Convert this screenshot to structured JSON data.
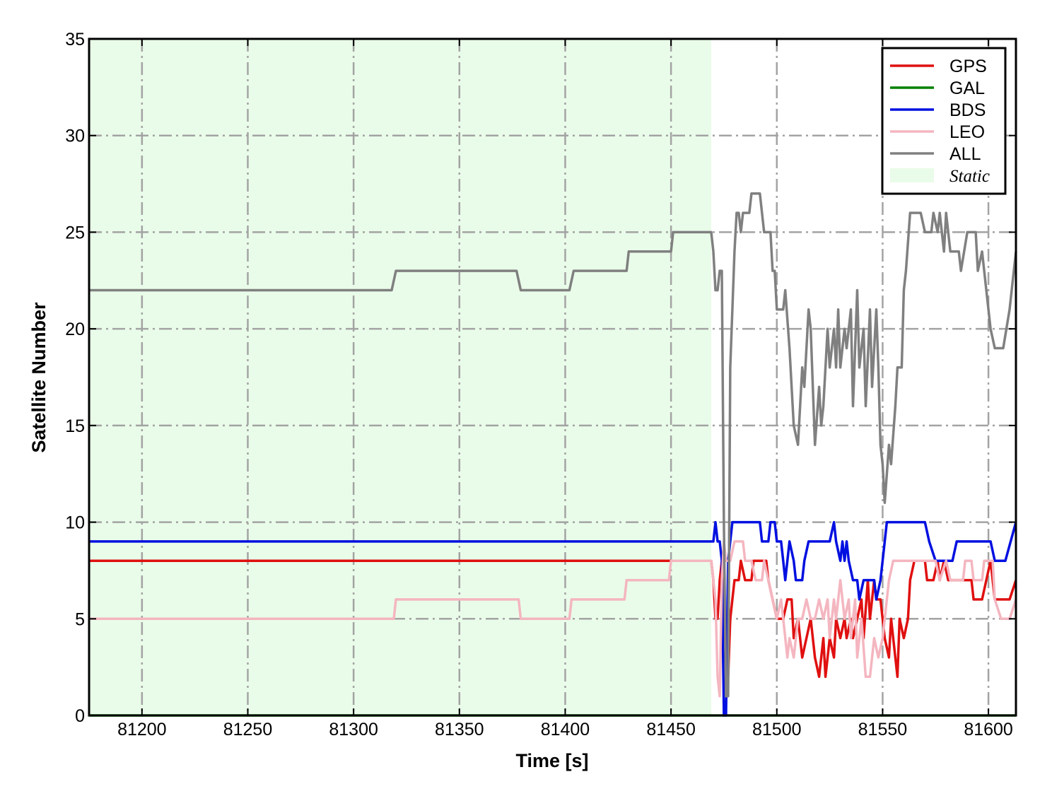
{
  "chart_data": {
    "type": "line",
    "title": "",
    "xlabel": "Time [s]",
    "ylabel": "Satellite Number",
    "xlim": [
      81175,
      81613
    ],
    "ylim": [
      0,
      35
    ],
    "xticks": [
      81200,
      81250,
      81300,
      81350,
      81400,
      81450,
      81500,
      81550,
      81600
    ],
    "yticks": [
      0,
      5,
      10,
      15,
      20,
      25,
      30,
      35
    ],
    "grid": true,
    "legend_position": "top-right",
    "shaded_region": {
      "label": "Static",
      "x_start": 81175,
      "x_end": 81469,
      "color": "#e9fce9"
    },
    "series": [
      {
        "name": "GPS",
        "color": "#e01010",
        "points": [
          [
            81175,
            8
          ],
          [
            81469,
            8
          ],
          [
            81470,
            7
          ],
          [
            81471,
            5
          ],
          [
            81472,
            5
          ],
          [
            81473,
            7
          ],
          [
            81474,
            8
          ],
          [
            81476,
            3
          ],
          [
            81477,
            2
          ],
          [
            81478,
            5
          ],
          [
            81480,
            7
          ],
          [
            81482,
            7
          ],
          [
            81483,
            8
          ],
          [
            81485,
            7
          ],
          [
            81488,
            7
          ],
          [
            81489,
            8
          ],
          [
            81495,
            8
          ],
          [
            81496,
            7
          ],
          [
            81498,
            6
          ],
          [
            81500,
            5
          ],
          [
            81503,
            5
          ],
          [
            81505,
            6
          ],
          [
            81507,
            6
          ],
          [
            81508,
            4
          ],
          [
            81510,
            5
          ],
          [
            81512,
            3
          ],
          [
            81514,
            4
          ],
          [
            81516,
            5
          ],
          [
            81518,
            3
          ],
          [
            81520,
            2
          ],
          [
            81522,
            4
          ],
          [
            81523,
            2
          ],
          [
            81525,
            4
          ],
          [
            81527,
            3
          ],
          [
            81528,
            5
          ],
          [
            81530,
            4
          ],
          [
            81532,
            5
          ],
          [
            81533,
            4
          ],
          [
            81535,
            5
          ],
          [
            81536,
            4
          ],
          [
            81538,
            5
          ],
          [
            81540,
            6
          ],
          [
            81541,
            4
          ],
          [
            81543,
            7
          ],
          [
            81544,
            5
          ],
          [
            81546,
            7
          ],
          [
            81547,
            6
          ],
          [
            81549,
            6
          ],
          [
            81550,
            5
          ],
          [
            81551,
            4
          ],
          [
            81553,
            3
          ],
          [
            81554,
            5
          ],
          [
            81556,
            3
          ],
          [
            81557,
            2
          ],
          [
            81558,
            5
          ],
          [
            81560,
            4
          ],
          [
            81562,
            5
          ],
          [
            81563,
            7
          ],
          [
            81565,
            8
          ],
          [
            81570,
            8
          ],
          [
            81571,
            7
          ],
          [
            81574,
            7
          ],
          [
            81576,
            8
          ],
          [
            81577,
            7
          ],
          [
            81579,
            8
          ],
          [
            81581,
            7
          ],
          [
            81584,
            7
          ],
          [
            81587,
            7
          ],
          [
            81592,
            7
          ],
          [
            81593,
            6
          ],
          [
            81597,
            6
          ],
          [
            81601,
            8
          ],
          [
            81603,
            6
          ],
          [
            81610,
            6
          ],
          [
            81613,
            7
          ]
        ]
      },
      {
        "name": "GAL",
        "color": "#008000",
        "points": [
          [
            81175,
            0
          ],
          [
            81613,
            0
          ]
        ]
      },
      {
        "name": "BDS",
        "color": "#0010e0",
        "points": [
          [
            81175,
            9
          ],
          [
            81470,
            9
          ],
          [
            81471,
            10
          ],
          [
            81472,
            9
          ],
          [
            81473,
            9
          ],
          [
            81474,
            8
          ],
          [
            81475,
            0
          ],
          [
            81476,
            0
          ],
          [
            81477,
            8
          ],
          [
            81478,
            9
          ],
          [
            81479,
            10
          ],
          [
            81492,
            10
          ],
          [
            81493,
            9
          ],
          [
            81496,
            9
          ],
          [
            81497,
            10
          ],
          [
            81499,
            10
          ],
          [
            81500,
            9
          ],
          [
            81502,
            9
          ],
          [
            81503,
            8
          ],
          [
            81504,
            7
          ],
          [
            81505,
            8
          ],
          [
            81506,
            9
          ],
          [
            81508,
            8
          ],
          [
            81509,
            7
          ],
          [
            81512,
            7
          ],
          [
            81513,
            8
          ],
          [
            81515,
            9
          ],
          [
            81525,
            9
          ],
          [
            81527,
            10
          ],
          [
            81528,
            9
          ],
          [
            81530,
            8
          ],
          [
            81531,
            9
          ],
          [
            81532,
            8
          ],
          [
            81533,
            9
          ],
          [
            81534,
            8
          ],
          [
            81536,
            7
          ],
          [
            81538,
            7
          ],
          [
            81539,
            6
          ],
          [
            81541,
            7
          ],
          [
            81546,
            7
          ],
          [
            81547,
            6
          ],
          [
            81549,
            7
          ],
          [
            81550,
            8
          ],
          [
            81552,
            10
          ],
          [
            81570,
            10
          ],
          [
            81572,
            9
          ],
          [
            81575,
            8
          ],
          [
            81583,
            8
          ],
          [
            81585,
            9
          ],
          [
            81601,
            9
          ],
          [
            81603,
            8
          ],
          [
            81608,
            8
          ],
          [
            81613,
            10
          ]
        ]
      },
      {
        "name": "LEO",
        "color": "#f4b6c0",
        "points": [
          [
            81175,
            5
          ],
          [
            81319,
            5
          ],
          [
            81320,
            6
          ],
          [
            81378,
            6
          ],
          [
            81379,
            5
          ],
          [
            81402,
            5
          ],
          [
            81403,
            6
          ],
          [
            81428,
            6
          ],
          [
            81429,
            7
          ],
          [
            81449,
            7
          ],
          [
            81450,
            8
          ],
          [
            81469,
            8
          ],
          [
            81470,
            7
          ],
          [
            81471,
            6
          ],
          [
            81472,
            2
          ],
          [
            81473,
            1
          ],
          [
            81474,
            7
          ],
          [
            81475,
            9
          ],
          [
            81476,
            8
          ],
          [
            81478,
            8
          ],
          [
            81480,
            9
          ],
          [
            81484,
            9
          ],
          [
            81485,
            8
          ],
          [
            81488,
            8
          ],
          [
            81490,
            7
          ],
          [
            81493,
            7
          ],
          [
            81494,
            8
          ],
          [
            81496,
            7
          ],
          [
            81498,
            6
          ],
          [
            81500,
            5
          ],
          [
            81502,
            6
          ],
          [
            81503,
            5
          ],
          [
            81505,
            3
          ],
          [
            81506,
            4
          ],
          [
            81508,
            3
          ],
          [
            81510,
            5
          ],
          [
            81512,
            5
          ],
          [
            81514,
            6
          ],
          [
            81516,
            5
          ],
          [
            81518,
            5
          ],
          [
            81520,
            6
          ],
          [
            81522,
            5
          ],
          [
            81524,
            6
          ],
          [
            81525,
            4
          ],
          [
            81527,
            6
          ],
          [
            81528,
            5
          ],
          [
            81530,
            7
          ],
          [
            81532,
            5
          ],
          [
            81534,
            6
          ],
          [
            81535,
            4
          ],
          [
            81537,
            6
          ],
          [
            81538,
            3
          ],
          [
            81540,
            5
          ],
          [
            81542,
            2
          ],
          [
            81544,
            2
          ],
          [
            81546,
            4
          ],
          [
            81548,
            3
          ],
          [
            81550,
            4
          ],
          [
            81552,
            6
          ],
          [
            81553,
            7
          ],
          [
            81555,
            8
          ],
          [
            81575,
            8
          ],
          [
            81577,
            7
          ],
          [
            81580,
            8
          ],
          [
            81582,
            7
          ],
          [
            81588,
            7
          ],
          [
            81589,
            8
          ],
          [
            81592,
            8
          ],
          [
            81593,
            7
          ],
          [
            81597,
            7
          ],
          [
            81598,
            8
          ],
          [
            81602,
            8
          ],
          [
            81603,
            6
          ],
          [
            81606,
            5
          ],
          [
            81610,
            5
          ],
          [
            81613,
            6
          ]
        ]
      },
      {
        "name": "ALL",
        "color": "#808080",
        "points": [
          [
            81175,
            22
          ],
          [
            81318,
            22
          ],
          [
            81320,
            23
          ],
          [
            81377,
            23
          ],
          [
            81379,
            22
          ],
          [
            81402,
            22
          ],
          [
            81404,
            23
          ],
          [
            81429,
            23
          ],
          [
            81430,
            24
          ],
          [
            81450,
            24
          ],
          [
            81451,
            25
          ],
          [
            81469,
            25
          ],
          [
            81470,
            24
          ],
          [
            81471,
            22
          ],
          [
            81472,
            22
          ],
          [
            81473,
            23
          ],
          [
            81474,
            23
          ],
          [
            81475,
            10
          ],
          [
            81476,
            1
          ],
          [
            81477,
            1
          ],
          [
            81478,
            18
          ],
          [
            81480,
            24
          ],
          [
            81481,
            26
          ],
          [
            81482,
            26
          ],
          [
            81483,
            25
          ],
          [
            81484,
            26
          ],
          [
            81487,
            26
          ],
          [
            81488,
            27
          ],
          [
            81492,
            27
          ],
          [
            81494,
            25
          ],
          [
            81497,
            25
          ],
          [
            81498,
            23
          ],
          [
            81499,
            23
          ],
          [
            81500,
            21
          ],
          [
            81503,
            21
          ],
          [
            81504,
            22
          ],
          [
            81506,
            19
          ],
          [
            81508,
            15
          ],
          [
            81510,
            14
          ],
          [
            81512,
            18
          ],
          [
            81513,
            17
          ],
          [
            81515,
            21
          ],
          [
            81516,
            20
          ],
          [
            81518,
            14
          ],
          [
            81520,
            17
          ],
          [
            81521,
            15
          ],
          [
            81522,
            16
          ],
          [
            81524,
            20
          ],
          [
            81525,
            18
          ],
          [
            81527,
            20
          ],
          [
            81528,
            18
          ],
          [
            81529,
            21
          ],
          [
            81530,
            18
          ],
          [
            81532,
            20
          ],
          [
            81533,
            19
          ],
          [
            81535,
            21
          ],
          [
            81536,
            16
          ],
          [
            81538,
            22
          ],
          [
            81539,
            18
          ],
          [
            81541,
            20
          ],
          [
            81542,
            16
          ],
          [
            81544,
            21
          ],
          [
            81545,
            17
          ],
          [
            81547,
            21
          ],
          [
            81548,
            18
          ],
          [
            81549,
            14
          ],
          [
            81550,
            13
          ],
          [
            81551,
            11
          ],
          [
            81553,
            14
          ],
          [
            81554,
            13
          ],
          [
            81556,
            16
          ],
          [
            81557,
            18
          ],
          [
            81559,
            18
          ],
          [
            81560,
            22
          ],
          [
            81561,
            23
          ],
          [
            81563,
            26
          ],
          [
            81568,
            26
          ],
          [
            81570,
            25
          ],
          [
            81573,
            25
          ],
          [
            81574,
            26
          ],
          [
            81576,
            25
          ],
          [
            81577,
            26
          ],
          [
            81579,
            24
          ],
          [
            81580,
            26
          ],
          [
            81582,
            24
          ],
          [
            81586,
            24
          ],
          [
            81587,
            23
          ],
          [
            81590,
            25
          ],
          [
            81594,
            25
          ],
          [
            81595,
            23
          ],
          [
            81597,
            24
          ],
          [
            81599,
            22
          ],
          [
            81601,
            20
          ],
          [
            81603,
            19
          ],
          [
            81607,
            19
          ],
          [
            81610,
            21
          ],
          [
            81613,
            24
          ]
        ]
      }
    ]
  }
}
